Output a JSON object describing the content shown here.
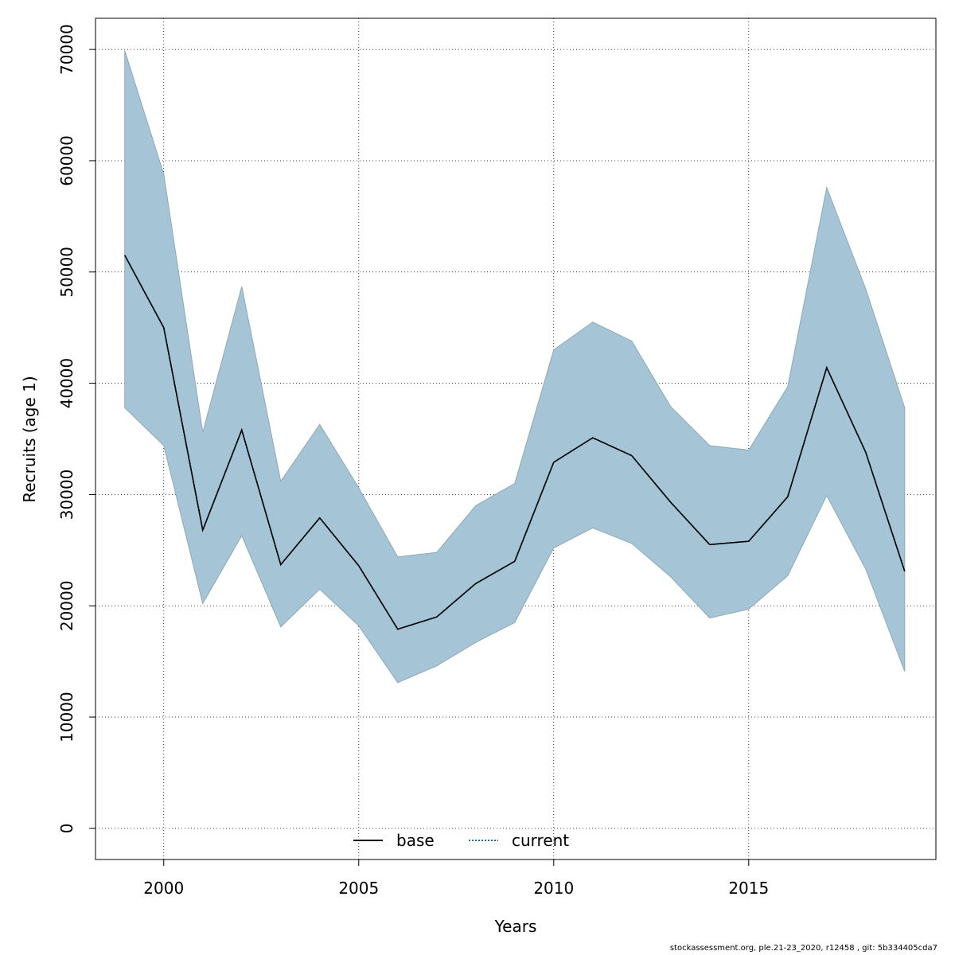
{
  "chart_data": {
    "type": "line",
    "xlabel": "Years",
    "ylabel": "Recruits (age 1)",
    "xlim": [
      1998.25,
      2019.8
    ],
    "ylim": [
      -2800,
      72800
    ],
    "x_ticks": [
      2000,
      2005,
      2010,
      2015
    ],
    "y_ticks": [
      0,
      10000,
      20000,
      30000,
      40000,
      50000,
      60000,
      70000
    ],
    "grid": true,
    "legend_position": "bottom-center",
    "x": [
      1999,
      2000,
      2001,
      2002,
      2003,
      2004,
      2005,
      2006,
      2007,
      2008,
      2009,
      2010,
      2011,
      2012,
      2013,
      2014,
      2015,
      2016,
      2017,
      2018,
      2019
    ],
    "band": {
      "color": "#a5c4d5",
      "upper": [
        69900,
        58800,
        35600,
        48700,
        31200,
        36300,
        30600,
        24400,
        24800,
        29000,
        31000,
        43000,
        45500,
        43800,
        37900,
        34400,
        34000,
        39700,
        57600,
        48500,
        37800
      ],
      "lower": [
        37800,
        34400,
        20200,
        26300,
        18100,
        21500,
        18200,
        13100,
        14600,
        16700,
        18500,
        25200,
        27000,
        25600,
        22600,
        18900,
        19700,
        22700,
        29900,
        23300,
        14100
      ]
    },
    "series": [
      {
        "name": "base",
        "color": "#000000",
        "style": "solid",
        "values": [
          51500,
          45000,
          26800,
          35800,
          23700,
          27900,
          23600,
          17900,
          19000,
          22000,
          24000,
          32900,
          35100,
          33500,
          29300,
          25500,
          25800,
          29800,
          41400,
          33800,
          23100
        ]
      },
      {
        "name": "current",
        "color": "#1a6fa8",
        "style": "dotted",
        "values": [
          51500,
          45000,
          26800,
          35800,
          23700,
          27900,
          23600,
          17900,
          19000,
          22000,
          24000,
          32900,
          35100,
          33500,
          29300,
          25500,
          25800,
          29800,
          41400,
          33800,
          23100
        ]
      }
    ]
  },
  "footer": "stockassessment.org, ple.21-23_2020, r12458 , git: 5b334405cda7"
}
